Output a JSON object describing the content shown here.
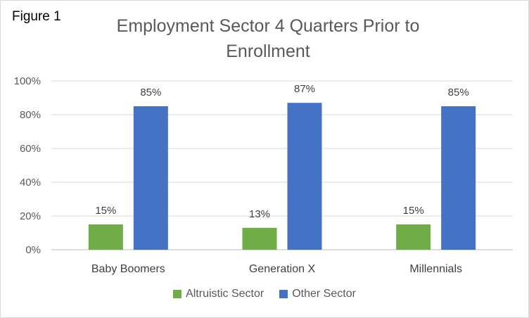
{
  "figure_label": "Figure 1",
  "chart_data": {
    "type": "bar",
    "title": "Employment Sector 4 Quarters Prior to Enrollment",
    "categories": [
      "Baby Boomers",
      "Generation X",
      "Millennials"
    ],
    "series": [
      {
        "name": "Altruistic Sector",
        "values": [
          15,
          13,
          15
        ],
        "labels": [
          "15%",
          "13%",
          "15%"
        ],
        "color": "#70ad47"
      },
      {
        "name": "Other Sector",
        "values": [
          85,
          87,
          85
        ],
        "labels": [
          "85%",
          "87%",
          "85%"
        ],
        "color": "#4472c4"
      }
    ],
    "ylim": [
      0,
      100
    ],
    "yticks": [
      0,
      20,
      40,
      60,
      80,
      100
    ],
    "ytick_labels": [
      "0%",
      "20%",
      "40%",
      "60%",
      "80%",
      "100%"
    ],
    "grid": true,
    "legend": "bottom"
  }
}
